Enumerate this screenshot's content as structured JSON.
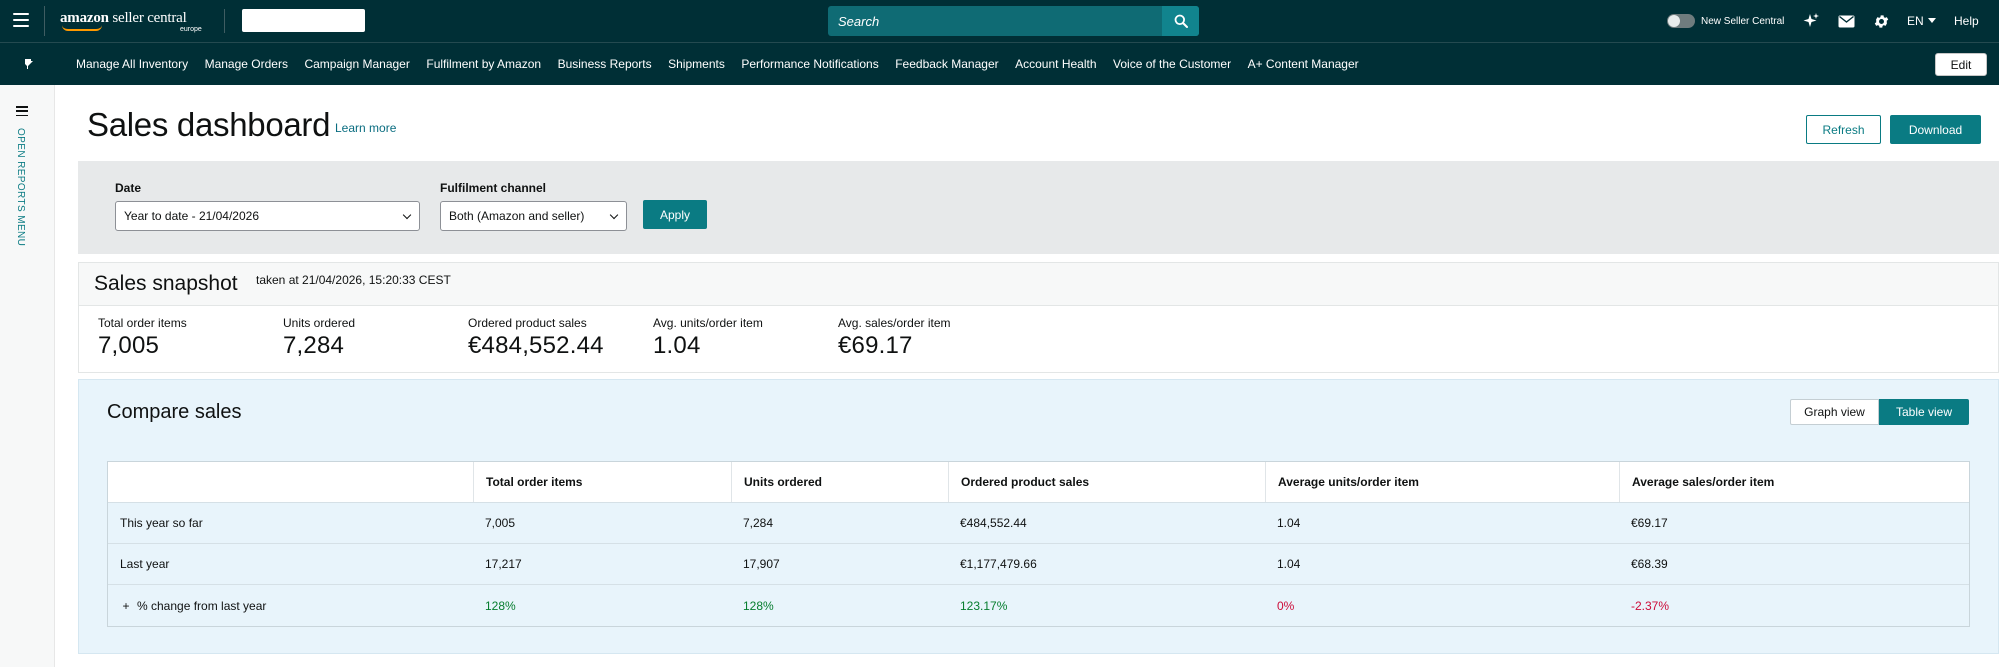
{
  "header": {
    "logo_brand": "amazon",
    "logo_product": "seller central",
    "logo_region": "europe",
    "search_placeholder": "Search",
    "toggle_label": "New Seller Central",
    "language": "EN",
    "help": "Help"
  },
  "nav": {
    "items": [
      "Manage All Inventory",
      "Manage Orders",
      "Campaign Manager",
      "Fulfilment by Amazon",
      "Business Reports",
      "Shipments",
      "Performance Notifications",
      "Feedback Manager",
      "Account Health",
      "Voice of the Customer",
      "A+ Content Manager"
    ],
    "edit": "Edit"
  },
  "left_rail": {
    "label": "OPEN REPORTS MENU"
  },
  "page": {
    "title": "Sales dashboard",
    "learn_more": "Learn more",
    "refresh": "Refresh",
    "download": "Download"
  },
  "filters": {
    "date_label": "Date",
    "date_value": "Year to date - 21/04/2026",
    "channel_label": "Fulfilment channel",
    "channel_value": "Both (Amazon and seller)",
    "apply": "Apply"
  },
  "snapshot": {
    "title": "Sales snapshot",
    "taken_at": "taken at 21/04/2026, 15:20:33 CEST",
    "metrics": [
      {
        "label": "Total order items",
        "value": "7,005"
      },
      {
        "label": "Units ordered",
        "value": "7,284"
      },
      {
        "label": "Ordered product sales",
        "value": "€484,552.44"
      },
      {
        "label": "Avg. units/order item",
        "value": "1.04"
      },
      {
        "label": "Avg. sales/order item",
        "value": "€69.17"
      }
    ]
  },
  "compare": {
    "title": "Compare sales",
    "graph_view": "Graph view",
    "table_view": "Table view",
    "columns": [
      "",
      "Total order items",
      "Units ordered",
      "Ordered product sales",
      "Average units/order item",
      "Average sales/order item"
    ],
    "rows": [
      {
        "label": "This year so far",
        "cells": [
          "7,005",
          "7,284",
          "€484,552.44",
          "1.04",
          "€69.17"
        ]
      },
      {
        "label": "Last year",
        "cells": [
          "17,217",
          "17,907",
          "€1,177,479.66",
          "1.04",
          "€68.39"
        ]
      },
      {
        "label": "% change from last year",
        "expand": "+",
        "cells": [
          "128%",
          "128%",
          "123.17%",
          "0%",
          "-2.37%"
        ]
      }
    ],
    "colors": {
      "positive": "#067d2e",
      "negative": "#cc0c39"
    }
  }
}
